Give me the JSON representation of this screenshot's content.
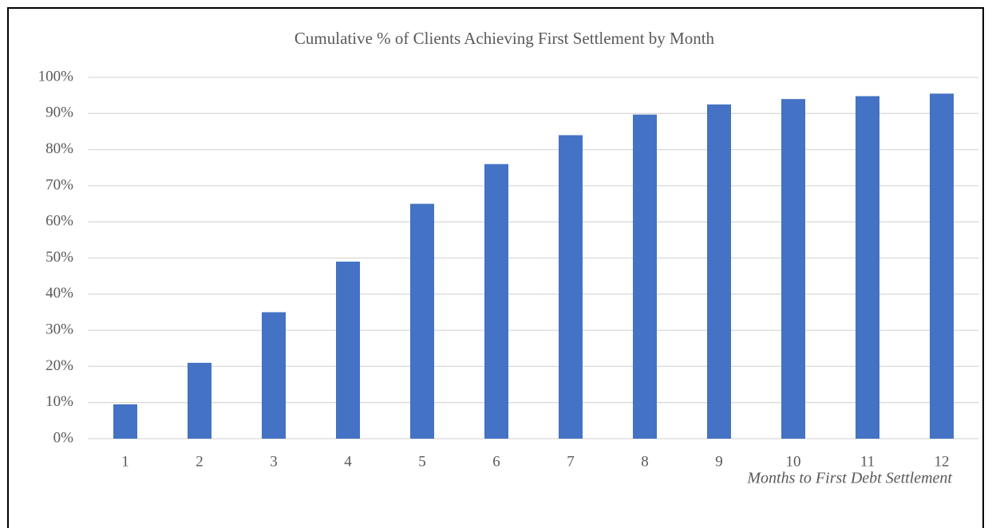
{
  "chart_data": {
    "type": "bar",
    "title": "Cumulative % of Clients Achieving First Settlement by Month",
    "x_label": "Months to First Debt Settlement",
    "categories": [
      "1",
      "2",
      "3",
      "4",
      "5",
      "6",
      "7",
      "8",
      "9",
      "10",
      "11",
      "12"
    ],
    "values": [
      9.5,
      21,
      35,
      49,
      65,
      76,
      84,
      89.7,
      92.5,
      94,
      94.8,
      95.5
    ],
    "color": "#4472c4",
    "ylim": [
      0,
      100
    ],
    "yticks": [
      {
        "value": 0,
        "label": "0%"
      },
      {
        "value": 10,
        "label": "10%"
      },
      {
        "value": 20,
        "label": "20%"
      },
      {
        "value": 30,
        "label": "30%"
      },
      {
        "value": 40,
        "label": "40%"
      },
      {
        "value": 50,
        "label": "50%"
      },
      {
        "value": 60,
        "label": "60%"
      },
      {
        "value": 70,
        "label": "70%"
      },
      {
        "value": 80,
        "label": "80%"
      },
      {
        "value": 90,
        "label": "90%"
      },
      {
        "value": 100,
        "label": "100%"
      }
    ],
    "grid": true
  }
}
